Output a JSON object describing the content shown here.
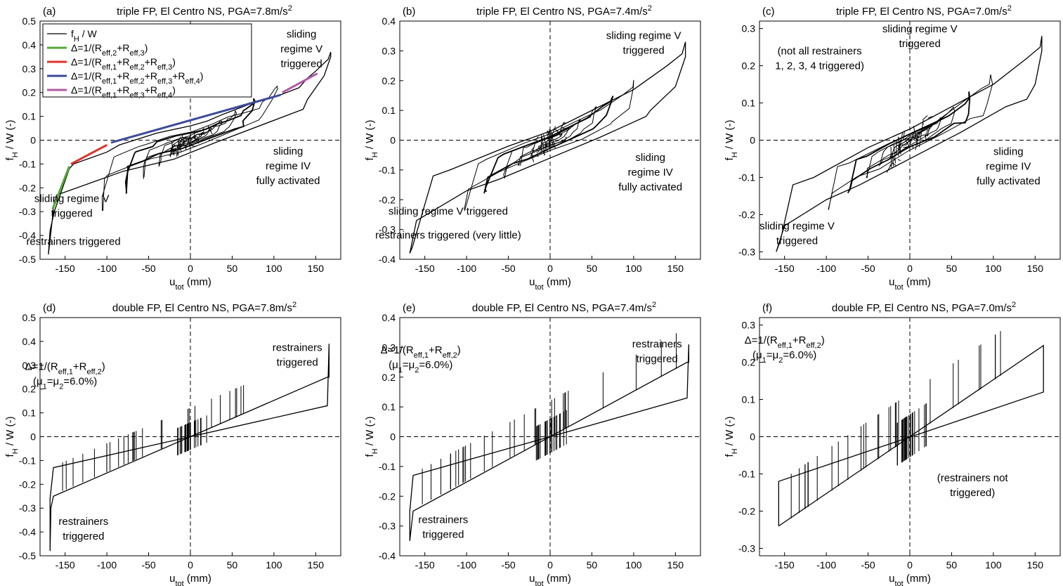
{
  "chart_data": [
    {
      "type": "line",
      "panel": "(a)",
      "title_main": "triple FP, El Centro NS, PGA=7.8m/s",
      "title_sup": "2",
      "xlabel": "u",
      "xlabel_sub": "tot",
      "xlabel_tail": " (mm)",
      "ylabel": "f",
      "ylabel_sub": "H",
      "ylabel_tail": " / W (-)",
      "xlim": [
        -180,
        180
      ],
      "ylim": [
        -0.5,
        0.5
      ],
      "xticks": [
        -150,
        -100,
        -50,
        0,
        50,
        100,
        150
      ],
      "yticks": [
        -0.5,
        -0.4,
        -0.3,
        -0.2,
        -0.1,
        0,
        0.1,
        0.2,
        0.3,
        0.4,
        0.5
      ],
      "series": [
        {
          "name": "fH / W",
          "color": "#000000",
          "x": [
            -170,
            -168,
            -163,
            -145,
            -140,
            -100,
            -85,
            -40,
            0,
            20,
            40,
            70,
            100,
            130,
            140,
            150,
            165,
            168,
            168,
            160,
            140,
            135,
            120,
            30,
            -20,
            -80,
            -120,
            -160,
            -163,
            -170
          ],
          "y": [
            -0.48,
            -0.38,
            -0.3,
            -0.12,
            -0.1,
            -0.05,
            -0.02,
            0.03,
            0.06,
            0.08,
            0.11,
            0.15,
            0.18,
            0.22,
            0.26,
            0.29,
            0.34,
            0.37,
            0.35,
            0.27,
            0.17,
            0.13,
            0.11,
            -0.01,
            -0.08,
            -0.13,
            -0.18,
            -0.23,
            -0.26,
            -0.48
          ]
        }
      ],
      "fits": [
        {
          "name": "Δ=1/(Reff,2+Reff,3)",
          "color": "#55a838",
          "x": [
            -165,
            -145
          ],
          "y": [
            -0.29,
            -0.11
          ]
        },
        {
          "name": "Δ=1/(Reff,1+Reff,2+Reff,3)",
          "color": "#e0322b",
          "x": [
            -143,
            -100
          ],
          "y": [
            -0.1,
            -0.02
          ]
        },
        {
          "name": "Δ=1/(Reff,1+Reff,2+Reff,3+Reff,4)",
          "color": "#3c4a9c",
          "x": [
            -95,
            108
          ],
          "y": [
            -0.01,
            0.19
          ]
        },
        {
          "name": "Δ=1/(Reff,1+Reff,3+Reff,4)",
          "color": "#b05aa5",
          "x": [
            110,
            152
          ],
          "y": [
            0.2,
            0.28
          ]
        }
      ],
      "legend": {
        "placement": "top-left",
        "entries": [
          {
            "prefix": "f",
            "sub1": "H",
            "rest": " / W"
          },
          {
            "prefix": "Δ=1/(R",
            "sub1": "eff,2",
            "mid": "+R",
            "sub2": "eff,3",
            "tail": ")"
          },
          {
            "prefix": "Δ=1/(R",
            "sub1": "eff,1",
            "mid": "+R",
            "sub2": "eff,2",
            "mid2": "+R",
            "sub3": "eff,3",
            "tail": ")"
          },
          {
            "prefix": "Δ=1/(R",
            "sub1": "eff,1",
            "mid": "+R",
            "sub2": "eff,2",
            "mid2": "+R",
            "sub3": "eff,3",
            "mid3": "+R",
            "sub4": "eff,4",
            "tail": ")"
          },
          {
            "prefix": "Δ=1/(R",
            "sub1": "eff,1",
            "mid": "+R",
            "sub2": "eff,3",
            "mid2": "+R",
            "sub3": "eff,4",
            "tail": ")"
          }
        ]
      },
      "annotations": [
        {
          "lines": [
            "sliding",
            "regime V",
            "triggered"
          ],
          "x": 133,
          "y": 0.43
        },
        {
          "lines": [
            "sliding",
            "regime IV",
            "fully activated"
          ],
          "x": 117,
          "y": -0.06
        },
        {
          "lines": [
            "sliding regime V",
            "triggered"
          ],
          "x": -142,
          "y": -0.26
        },
        {
          "lines": [
            "restrainers triggered"
          ],
          "x": -140,
          "y": -0.44
        }
      ]
    },
    {
      "type": "line",
      "panel": "(b)",
      "title_main": "triple FP, El Centro NS, PGA=7.4m/s",
      "title_sup": "2",
      "xlabel": "u",
      "xlabel_sub": "tot",
      "xlabel_tail": " (mm)",
      "ylabel": "f",
      "ylabel_sub": "H",
      "ylabel_tail": " / W (-)",
      "xlim": [
        -180,
        180
      ],
      "ylim": [
        -0.4,
        0.4
      ],
      "xticks": [
        -150,
        -100,
        -50,
        0,
        50,
        100,
        150
      ],
      "yticks": [
        -0.4,
        -0.3,
        -0.2,
        -0.1,
        0,
        0.1,
        0.2,
        0.3,
        0.4
      ],
      "series": [
        {
          "name": "fH / W",
          "color": "#000000",
          "x": [
            -168,
            -165,
            -140,
            -120,
            -50,
            0,
            50,
            100,
            140,
            158,
            162,
            162,
            150,
            120,
            115,
            60,
            0,
            -60,
            -100,
            -160,
            -168
          ],
          "y": [
            -0.38,
            -0.36,
            -0.12,
            -0.1,
            -0.02,
            0.03,
            0.1,
            0.17,
            0.25,
            0.29,
            0.33,
            0.28,
            0.18,
            0.1,
            0.08,
            0.01,
            -0.06,
            -0.13,
            -0.17,
            -0.27,
            -0.38
          ]
        }
      ],
      "annotations": [
        {
          "lines": [
            "sliding regime V",
            "triggered"
          ],
          "x": 112,
          "y": 0.34
        },
        {
          "lines": [
            "sliding",
            "regime IV",
            "fully activated"
          ],
          "x": 120,
          "y": -0.07
        },
        {
          "lines": [
            "sliding regime V triggered"
          ],
          "x": -122,
          "y": -0.25
        },
        {
          "lines": [
            "restrainers triggered (very little)"
          ],
          "x": -122,
          "y": -0.33
        }
      ]
    },
    {
      "type": "line",
      "panel": "(c)",
      "title_main": "triple FP, El Centro NS, PGA=7.0m/s",
      "title_sup": "2",
      "xlabel": "u",
      "xlabel_sub": "tot",
      "xlabel_tail": " (mm)",
      "ylabel": "f",
      "ylabel_sub": "H",
      "ylabel_tail": " / W (-)",
      "xlim": [
        -180,
        180
      ],
      "ylim": [
        -0.32,
        0.32
      ],
      "xticks": [
        -150,
        -100,
        -50,
        0,
        50,
        100,
        150
      ],
      "yticks": [
        -0.3,
        -0.2,
        -0.1,
        0,
        0.1,
        0.2,
        0.3
      ],
      "series": [
        {
          "name": "fH / W",
          "color": "#000000",
          "x": [
            -160,
            -155,
            -140,
            -115,
            -50,
            0,
            50,
            100,
            140,
            156,
            158,
            158,
            150,
            140,
            115,
            60,
            0,
            -60,
            -100,
            -150,
            -160
          ],
          "y": [
            -0.3,
            -0.27,
            -0.12,
            -0.1,
            -0.02,
            0.03,
            0.09,
            0.15,
            0.22,
            0.25,
            0.28,
            0.24,
            0.15,
            0.11,
            0.09,
            0.02,
            -0.05,
            -0.12,
            -0.16,
            -0.23,
            -0.3
          ]
        }
      ],
      "annotations": [
        {
          "lines": [
            "(not all restrainers",
            "1, 2, 3, 4 triggered)"
          ],
          "x": -108,
          "y": 0.23
        },
        {
          "lines": [
            "sliding  regime V",
            "triggered"
          ],
          "x": 12,
          "y": 0.29
        },
        {
          "lines": [
            "sliding",
            "regime IV",
            "fully activated"
          ],
          "x": 118,
          "y": -0.04
        },
        {
          "lines": [
            "sliding regime V",
            "triggered"
          ],
          "x": -135,
          "y": -0.24
        }
      ]
    },
    {
      "type": "line",
      "panel": "(d)",
      "title_main": "double FP, El Centro NS, PGA=7.8m/s",
      "title_sup": "2",
      "xlabel": "u",
      "xlabel_sub": "tot",
      "xlabel_tail": " (mm)",
      "ylabel": "f",
      "ylabel_sub": "H",
      "ylabel_tail": " / W (-)",
      "xlim": [
        -180,
        180
      ],
      "ylim": [
        -0.5,
        0.5
      ],
      "xticks": [
        -150,
        -100,
        -50,
        0,
        50,
        100,
        150
      ],
      "yticks": [
        -0.5,
        -0.4,
        -0.3,
        -0.2,
        -0.1,
        0,
        0.1,
        0.2,
        0.3,
        0.4,
        0.5
      ],
      "series": [
        {
          "name": "fH / W",
          "color": "#000000",
          "x": [
            -168,
            -168,
            -164,
            164,
            166,
            166,
            164,
            -164,
            -167,
            -168
          ],
          "y": [
            -0.48,
            -0.26,
            -0.13,
            0.13,
            0.39,
            0.25,
            0.25,
            -0.25,
            -0.3,
            -0.48
          ]
        }
      ],
      "annotations": [
        {
          "lines": [
            "Δ=1/(R|eff,1|+R|eff,2|)",
            "(μ|1|=μ|2|=6.0%)"
          ],
          "x": -150,
          "y": 0.28
        },
        {
          "lines": [
            "restrainers",
            "triggered"
          ],
          "x": 128,
          "y": 0.36
        },
        {
          "lines": [
            "restrainers",
            "triggered"
          ],
          "x": -128,
          "y": -0.37
        }
      ]
    },
    {
      "type": "line",
      "panel": "(e)",
      "title_main": "double FP, El Centro NS, PGA=7.4m/s",
      "title_sup": "2",
      "xlabel": "u",
      "xlabel_sub": "tot",
      "xlabel_tail": " (mm)",
      "ylabel": "f",
      "ylabel_sub": "H",
      "ylabel_tail": " / W (-)",
      "xlim": [
        -180,
        180
      ],
      "ylim": [
        -0.4,
        0.4
      ],
      "xticks": [
        -150,
        -100,
        -50,
        0,
        50,
        100,
        150
      ],
      "yticks": [
        -0.4,
        -0.3,
        -0.2,
        -0.1,
        0,
        0.1,
        0.2,
        0.3,
        0.4
      ],
      "series": [
        {
          "name": "fH / W",
          "color": "#000000",
          "x": [
            -168,
            -168,
            -164,
            164,
            166,
            166,
            164,
            -164,
            -168
          ],
          "y": [
            -0.35,
            -0.25,
            -0.13,
            0.13,
            0.31,
            0.25,
            0.25,
            -0.25,
            -0.35
          ]
        }
      ],
      "annotations": [
        {
          "lines": [
            "Δ=1/(R|eff,1|+R|eff,2|)",
            "(μ|1|=μ|2|=6.0%)"
          ],
          "x": -155,
          "y": 0.28
        },
        {
          "lines": [
            "restrainers",
            "triggered"
          ],
          "x": 128,
          "y": 0.3
        },
        {
          "lines": [
            "restrainers",
            "triggered"
          ],
          "x": -128,
          "y": -0.29
        }
      ]
    },
    {
      "type": "line",
      "panel": "(f)",
      "title_main": "double FP, El Centro NS, PGA=7.0m/s",
      "title_sup": "2",
      "xlabel": "u",
      "xlabel_sub": "tot",
      "xlabel_tail": " (mm)",
      "ylabel": "f",
      "ylabel_sub": "H",
      "ylabel_tail": " / W (-)",
      "xlim": [
        -180,
        180
      ],
      "ylim": [
        -0.32,
        0.32
      ],
      "xticks": [
        -150,
        -100,
        -50,
        0,
        50,
        100,
        150
      ],
      "yticks": [
        -0.3,
        -0.2,
        -0.1,
        0,
        0.1,
        0.2,
        0.3
      ],
      "series": [
        {
          "name": "fH / W",
          "color": "#000000",
          "x": [
            -157,
            -157,
            160,
            160,
            -157
          ],
          "y": [
            -0.24,
            -0.12,
            0.12,
            0.245,
            -0.24
          ]
        }
      ],
      "annotations": [
        {
          "lines": [
            "Δ=1/(R|eff,1|+R|eff,2|)",
            "(μ|1|=μ|2|=6.0%)"
          ],
          "x": -150,
          "y": 0.25
        },
        {
          "lines": [
            "(restrainers not",
            "triggered)"
          ],
          "x": 75,
          "y": -0.12
        }
      ]
    }
  ]
}
